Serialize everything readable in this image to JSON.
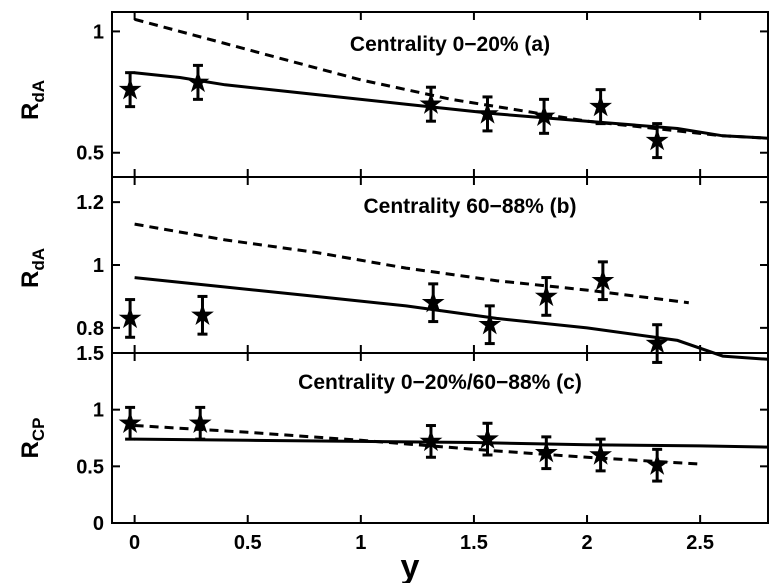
{
  "chart_data": [
    {
      "type": "line",
      "title": "Centrality 0−20%  (a)",
      "ylabel": "R",
      "ylabel_sub": "dA",
      "xlim": [
        -0.1,
        2.8
      ],
      "ylim": [
        0.4,
        1.08
      ],
      "yticks": [
        0.5,
        1
      ],
      "ytick_labels": [
        "0.5",
        "1"
      ],
      "series": [
        {
          "style": "solid",
          "x": [
            0,
            0.2,
            0.4,
            0.8,
            1.2,
            1.6,
            2.0,
            2.4,
            2.6,
            2.8
          ],
          "y": [
            0.83,
            0.81,
            0.78,
            0.74,
            0.7,
            0.66,
            0.63,
            0.6,
            0.57,
            0.56
          ]
        },
        {
          "style": "dashed",
          "x": [
            0,
            0.2,
            0.4,
            0.6,
            0.8,
            1.0,
            1.2,
            1.4,
            1.6,
            1.8,
            2.0,
            2.2,
            2.4,
            2.6,
            2.8
          ],
          "y": [
            1.05,
            1.0,
            0.95,
            0.9,
            0.85,
            0.8,
            0.76,
            0.72,
            0.69,
            0.66,
            0.63,
            0.61,
            0.59,
            0.57,
            0.56
          ]
        }
      ],
      "points": [
        {
          "x": -0.02,
          "y": 0.76,
          "err": 0.07
        },
        {
          "x": 0.28,
          "y": 0.79,
          "err": 0.07
        },
        {
          "x": 1.31,
          "y": 0.7,
          "err": 0.07
        },
        {
          "x": 1.56,
          "y": 0.66,
          "err": 0.07
        },
        {
          "x": 1.81,
          "y": 0.65,
          "err": 0.07
        },
        {
          "x": 2.06,
          "y": 0.69,
          "err": 0.07
        },
        {
          "x": 2.31,
          "y": 0.55,
          "err": 0.07
        }
      ]
    },
    {
      "type": "line",
      "title": "Centrality 60−88%  (b)",
      "ylabel": "R",
      "ylabel_sub": "dA",
      "xlim": [
        -0.1,
        2.8
      ],
      "ylim": [
        0.72,
        1.28
      ],
      "yticks": [
        0.8,
        1,
        1.2
      ],
      "ytick_labels": [
        "0.8",
        "1",
        "1.2"
      ],
      "series": [
        {
          "style": "solid",
          "x": [
            0,
            0.4,
            0.8,
            1.2,
            1.6,
            2.0,
            2.4,
            2.6,
            2.8
          ],
          "y": [
            0.96,
            0.93,
            0.9,
            0.87,
            0.83,
            0.8,
            0.76,
            0.71,
            0.7
          ]
        },
        {
          "style": "dashed",
          "x": [
            0,
            0.4,
            0.8,
            1.2,
            1.6,
            2.0,
            2.45
          ],
          "y": [
            1.13,
            1.08,
            1.04,
            0.99,
            0.95,
            0.92,
            0.88
          ]
        }
      ],
      "points": [
        {
          "x": -0.02,
          "y": 0.83,
          "err": 0.06
        },
        {
          "x": 0.3,
          "y": 0.84,
          "err": 0.06
        },
        {
          "x": 1.32,
          "y": 0.88,
          "err": 0.06
        },
        {
          "x": 1.57,
          "y": 0.81,
          "err": 0.06
        },
        {
          "x": 1.82,
          "y": 0.9,
          "err": 0.06
        },
        {
          "x": 2.07,
          "y": 0.95,
          "err": 0.06
        },
        {
          "x": 2.31,
          "y": 0.75,
          "err": 0.06
        }
      ]
    },
    {
      "type": "line",
      "title": "Centrality 0−20%/60−88%  (c)",
      "ylabel": "R",
      "ylabel_sub": "CP",
      "xlim": [
        -0.1,
        2.8
      ],
      "ylim": [
        0,
        1.5
      ],
      "yticks": [
        0,
        0.5,
        1,
        1.5
      ],
      "ytick_labels": [
        "0",
        "0.5",
        "1",
        "1.5"
      ],
      "xticks": [
        0,
        0.5,
        1,
        1.5,
        2,
        2.5
      ],
      "xtick_labels": [
        "0",
        "0.5",
        "1",
        "1.5",
        "2",
        "2.5"
      ],
      "xlabel": "y",
      "series": [
        {
          "style": "solid",
          "x": [
            0,
            0.5,
            1.0,
            1.5,
            2.0,
            2.5,
            2.8
          ],
          "y": [
            0.74,
            0.73,
            0.72,
            0.71,
            0.69,
            0.68,
            0.67
          ]
        },
        {
          "style": "dashed",
          "x": [
            0,
            0.5,
            1.0,
            1.5,
            2.0,
            2.5
          ],
          "y": [
            0.86,
            0.8,
            0.73,
            0.65,
            0.58,
            0.52
          ]
        }
      ],
      "points": [
        {
          "x": -0.02,
          "y": 0.88,
          "err": 0.14
        },
        {
          "x": 0.29,
          "y": 0.88,
          "err": 0.14
        },
        {
          "x": 1.31,
          "y": 0.72,
          "err": 0.14
        },
        {
          "x": 1.56,
          "y": 0.74,
          "err": 0.14
        },
        {
          "x": 1.82,
          "y": 0.62,
          "err": 0.14
        },
        {
          "x": 2.06,
          "y": 0.6,
          "err": 0.14
        },
        {
          "x": 2.31,
          "y": 0.51,
          "err": 0.14
        }
      ]
    }
  ]
}
